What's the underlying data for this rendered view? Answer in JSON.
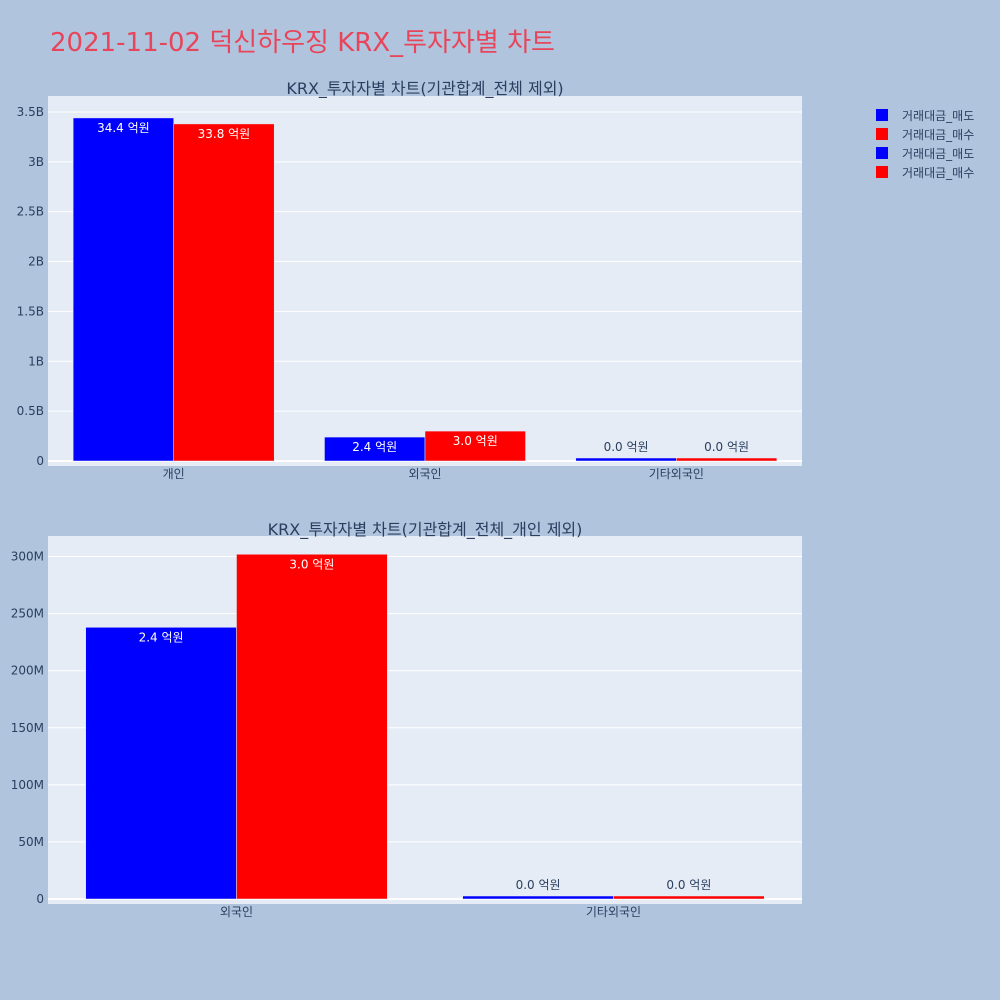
{
  "page": {
    "title": "2021-11-02 덕신하우징 KRX_투자자별 차트",
    "background": "#b0c4de",
    "plot_background": "#e5ecf6",
    "title_color": "#e8455a"
  },
  "legend": {
    "items": [
      {
        "label": "거래대금_매도",
        "color": "#0000ff"
      },
      {
        "label": "거래대금_매수",
        "color": "#ff0000"
      },
      {
        "label": "거래대금_매도",
        "color": "#0000ff"
      },
      {
        "label": "거래대금_매수",
        "color": "#ff0000"
      }
    ]
  },
  "chart_data": [
    {
      "type": "bar",
      "title": "KRX_투자자별 차트(기관합계_전체 제외)",
      "categories": [
        "개인",
        "외국인",
        "기타외국인"
      ],
      "series": [
        {
          "name": "거래대금_매도",
          "color": "#0000ff",
          "values": [
            3440000000,
            240000000,
            0
          ],
          "labels": [
            "34.4 억원",
            "2.4 억원",
            "0.0 억원"
          ]
        },
        {
          "name": "거래대금_매수",
          "color": "#ff0000",
          "values": [
            3380000000,
            300000000,
            0
          ],
          "labels": [
            "33.8 억원",
            "3.0 억원",
            "0.0 억원"
          ]
        }
      ],
      "ylim": [
        0,
        3660000000
      ],
      "yticks": [
        0,
        500000000,
        1000000000,
        1500000000,
        2000000000,
        2500000000,
        3000000000,
        3500000000
      ],
      "ytick_labels": [
        "0",
        "0.5B",
        "1B",
        "1.5B",
        "2B",
        "2.5B",
        "3B",
        "3.5B"
      ],
      "xlabel": "",
      "ylabel": "",
      "grid": true
    },
    {
      "type": "bar",
      "title": "KRX_투자자별 차트(기관합계_전체_개인 제외)",
      "categories": [
        "외국인",
        "기타외국인"
      ],
      "series": [
        {
          "name": "거래대금_매도",
          "color": "#0000ff",
          "values": [
            238000000,
            0
          ],
          "labels": [
            "2.4 억원",
            "0.0 억원"
          ]
        },
        {
          "name": "거래대금_매수",
          "color": "#ff0000",
          "values": [
            302000000,
            0
          ],
          "labels": [
            "3.0 억원",
            "0.0 억원"
          ]
        }
      ],
      "ylim": [
        0,
        318000000
      ],
      "yticks": [
        0,
        50000000,
        100000000,
        150000000,
        200000000,
        250000000,
        300000000
      ],
      "ytick_labels": [
        "0",
        "50M",
        "100M",
        "150M",
        "200M",
        "250M",
        "300M"
      ],
      "xlabel": "",
      "ylabel": "",
      "grid": true
    }
  ]
}
